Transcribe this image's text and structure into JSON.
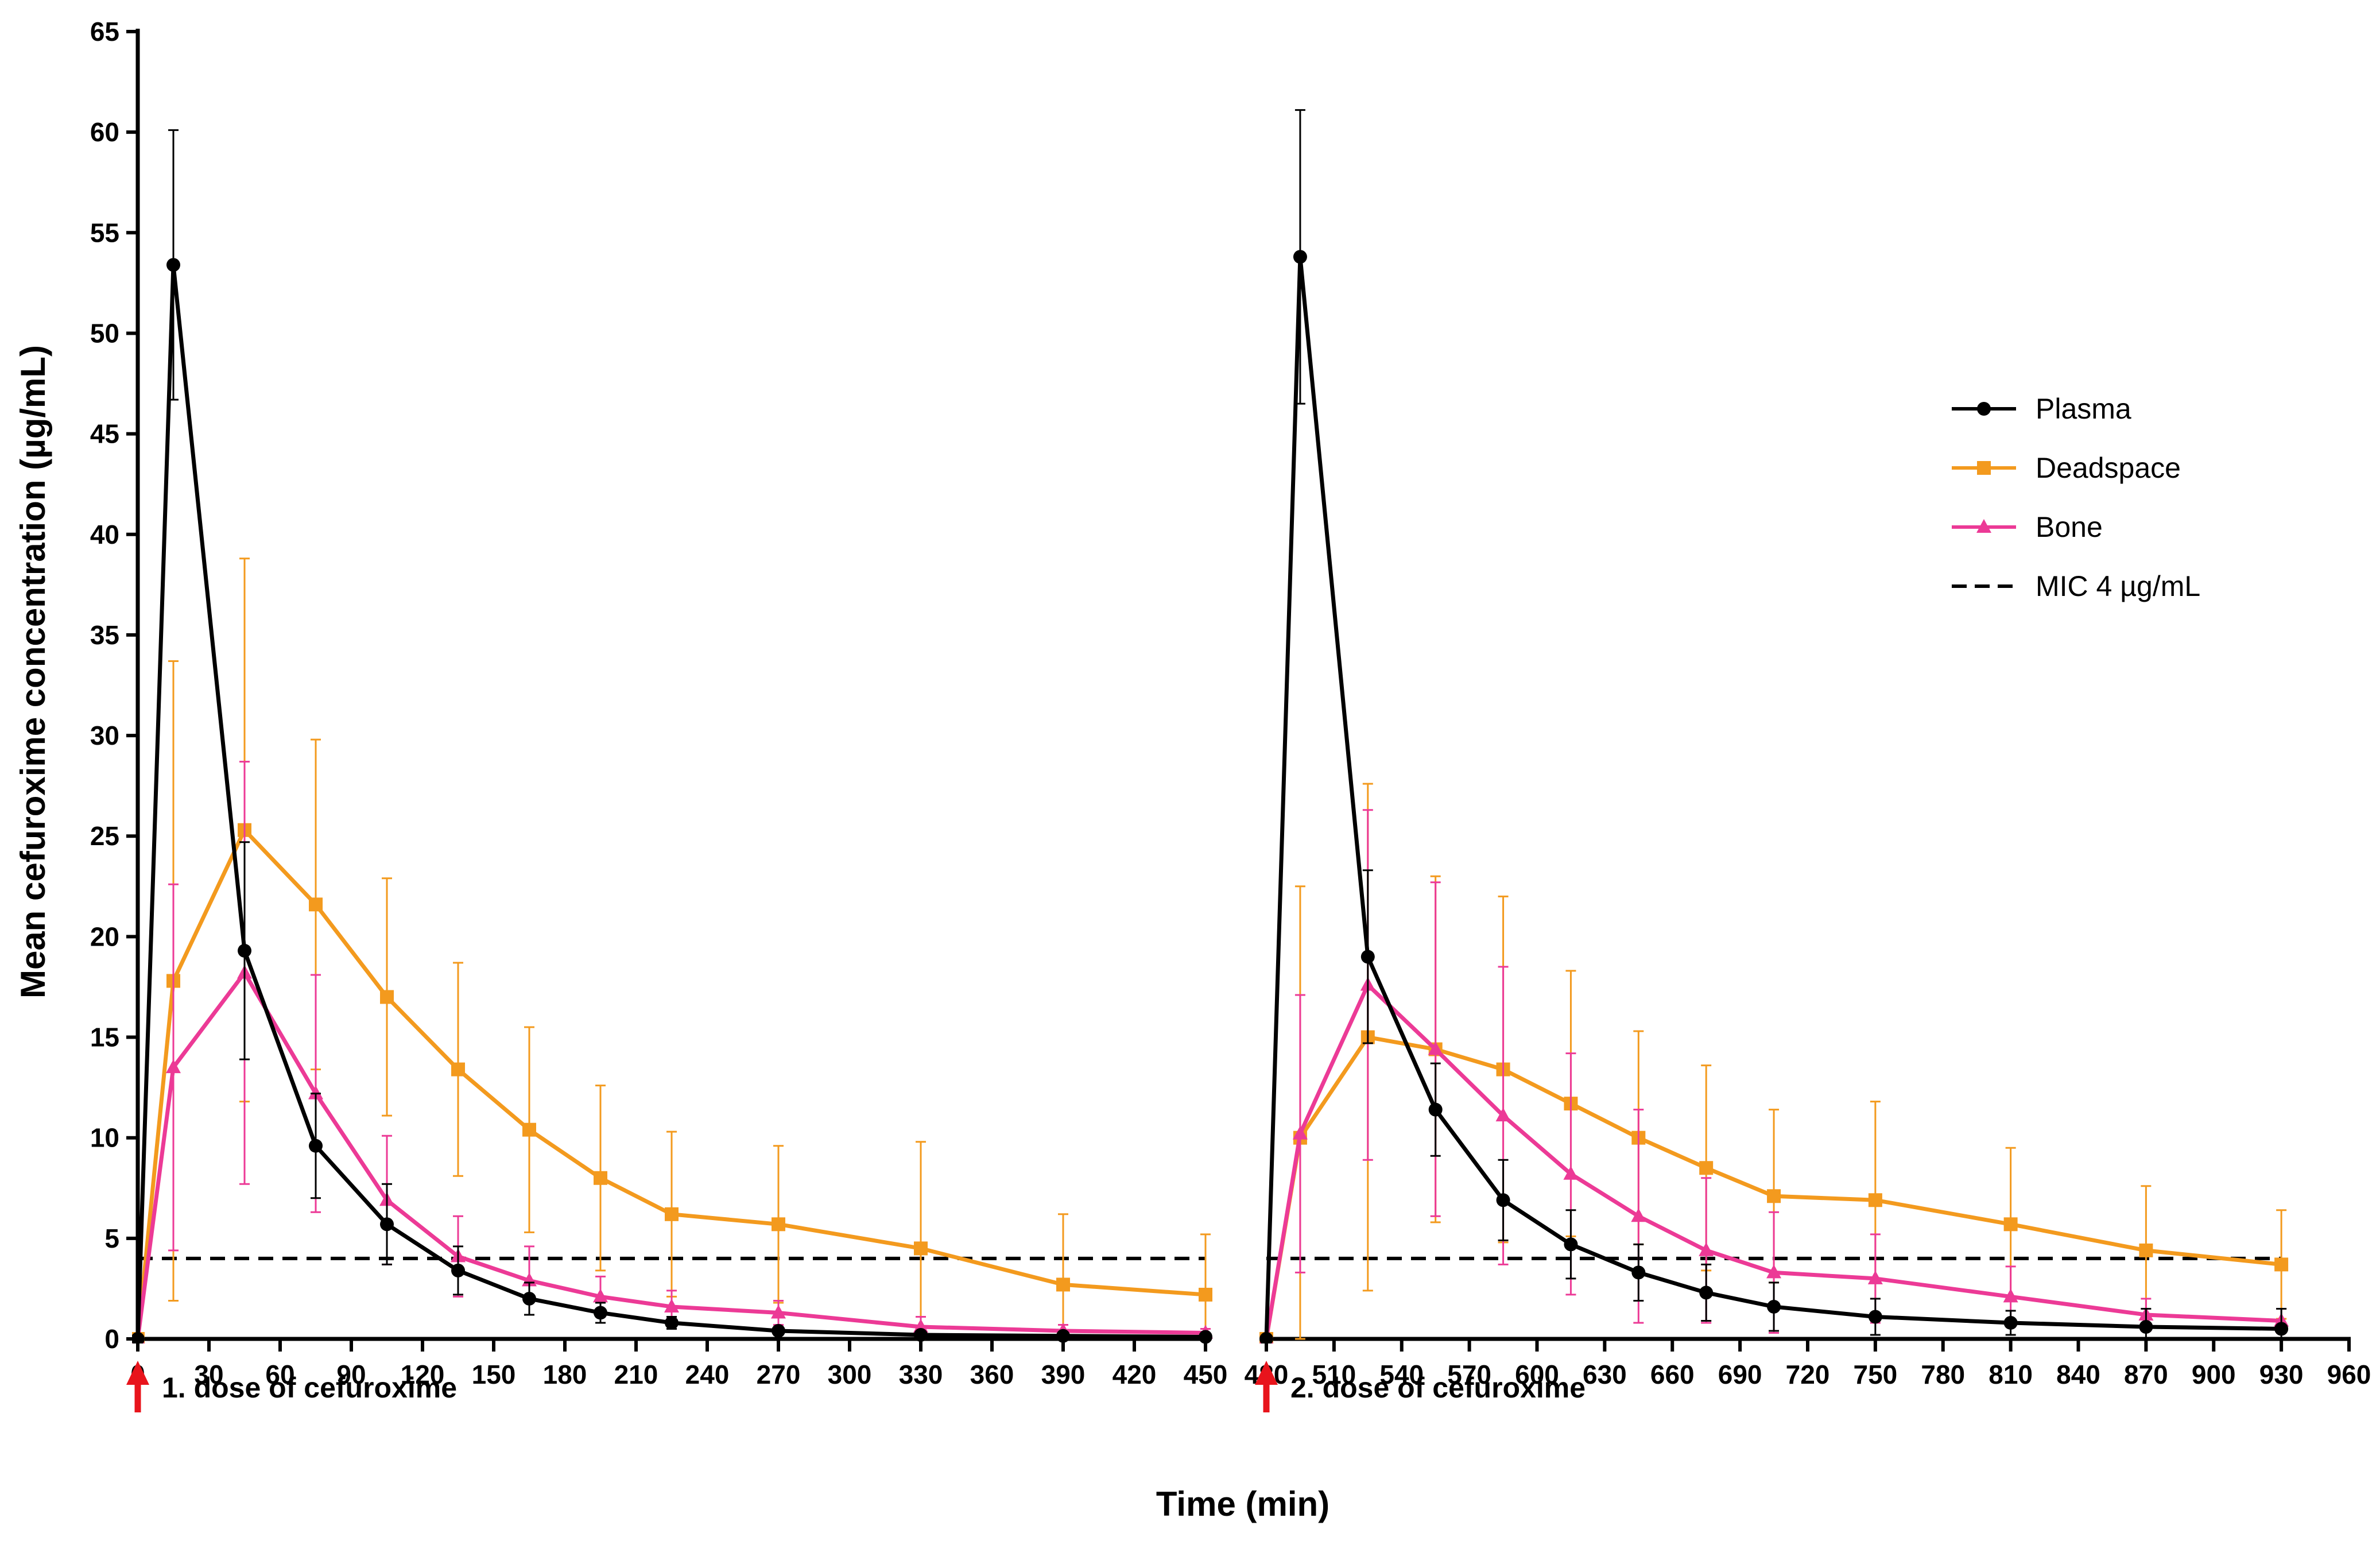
{
  "chart_data": {
    "type": "line",
    "ylabel": "Mean cefuroxime concentration (µg/mL)",
    "xlabel": "Time (min)",
    "ylim": [
      0,
      65
    ],
    "yticks": [
      0,
      5,
      10,
      15,
      20,
      25,
      30,
      35,
      40,
      45,
      50,
      55,
      60,
      65
    ],
    "legend_position": "right",
    "grid": false,
    "colors": {
      "Plasma": "#000000",
      "Deadspace": "#f39a1e",
      "Bone": "#ec3a96",
      "MIC": "#000000",
      "arrow": "#e8141c"
    },
    "legend": [
      {
        "label": "Plasma",
        "marker": "circle",
        "color": "#000000"
      },
      {
        "label": "Deadspace",
        "marker": "square",
        "color": "#f39a1e"
      },
      {
        "label": "Bone",
        "marker": "triangle",
        "color": "#ec3a96"
      },
      {
        "label": "MIC 4 µg/mL",
        "marker": "dashed",
        "color": "#000000"
      }
    ],
    "mic_value": 4,
    "panels": [
      {
        "xlim": [
          0,
          450
        ],
        "xticks": [
          0,
          30,
          60,
          90,
          120,
          150,
          180,
          210,
          240,
          270,
          300,
          330,
          360,
          390,
          420,
          450
        ],
        "mic_range": [
          0,
          450
        ],
        "dose_label": "1. dose of cefuroxime",
        "dose_time": 0,
        "series": [
          {
            "name": "Plasma",
            "x": [
              0,
              15,
              45,
              75,
              105,
              135,
              165,
              195,
              225,
              270,
              330,
              390,
              450
            ],
            "y": [
              0,
              53.4,
              19.3,
              9.6,
              5.7,
              3.4,
              2.0,
              1.3,
              0.8,
              0.4,
              0.2,
              0.15,
              0.1
            ],
            "err": [
              0,
              6.7,
              5.4,
              2.6,
              2.0,
              1.2,
              0.8,
              0.5,
              0.3,
              0.2,
              0.1,
              0.1,
              0.1
            ]
          },
          {
            "name": "Deadspace",
            "x": [
              0,
              15,
              45,
              75,
              105,
              135,
              165,
              195,
              225,
              270,
              330,
              390,
              450
            ],
            "y": [
              0,
              17.8,
              25.3,
              21.6,
              17.0,
              13.4,
              10.4,
              8.0,
              6.2,
              5.7,
              4.5,
              2.7,
              2.2
            ],
            "err": [
              0,
              15.9,
              13.5,
              8.2,
              5.9,
              5.3,
              5.1,
              4.6,
              4.1,
              3.9,
              5.3,
              3.5,
              3.0
            ]
          },
          {
            "name": "Bone",
            "x": [
              0,
              15,
              45,
              75,
              105,
              135,
              165,
              195,
              225,
              270,
              330,
              390,
              450
            ],
            "y": [
              0,
              13.5,
              18.2,
              12.2,
              6.9,
              4.1,
              2.9,
              2.1,
              1.6,
              1.3,
              0.6,
              0.4,
              0.3
            ],
            "err": [
              0,
              9.1,
              10.5,
              5.9,
              3.2,
              2.0,
              1.7,
              1.0,
              0.8,
              0.6,
              0.5,
              0.3,
              0.2
            ]
          }
        ]
      },
      {
        "xlim": [
          480,
          960
        ],
        "xticks": [
          480,
          510,
          540,
          570,
          600,
          630,
          660,
          690,
          720,
          750,
          780,
          810,
          840,
          870,
          900,
          930,
          960
        ],
        "mic_range": [
          480,
          930
        ],
        "dose_label": "2. dose of cefuroxime",
        "dose_time": 480,
        "series": [
          {
            "name": "Plasma",
            "x": [
              480,
              495,
              525,
              555,
              585,
              615,
              645,
              675,
              705,
              750,
              810,
              870,
              930
            ],
            "y": [
              0,
              53.8,
              19.0,
              11.4,
              6.9,
              4.7,
              3.3,
              2.3,
              1.6,
              1.1,
              0.8,
              0.6,
              0.5
            ],
            "err": [
              0,
              7.3,
              4.3,
              2.3,
              2.0,
              1.7,
              1.4,
              1.4,
              1.2,
              0.9,
              0.6,
              0.9,
              1.0
            ]
          },
          {
            "name": "Deadspace",
            "x": [
              480,
              495,
              525,
              555,
              585,
              615,
              645,
              675,
              705,
              750,
              810,
              870,
              930
            ],
            "y": [
              0,
              10.0,
              15.0,
              14.4,
              13.4,
              11.7,
              10.0,
              8.5,
              7.1,
              6.9,
              5.7,
              4.4,
              3.7
            ],
            "err": [
              0,
              12.5,
              12.6,
              8.6,
              8.6,
              6.6,
              5.3,
              5.1,
              4.3,
              4.9,
              3.8,
              3.2,
              2.7
            ]
          },
          {
            "name": "Bone",
            "x": [
              480,
              495,
              525,
              555,
              585,
              615,
              645,
              675,
              705,
              750,
              810,
              870,
              930
            ],
            "y": [
              0,
              10.2,
              17.6,
              14.4,
              11.1,
              8.2,
              6.1,
              4.4,
              3.3,
              3.0,
              2.1,
              1.2,
              0.9
            ],
            "err": [
              0,
              6.9,
              8.7,
              8.3,
              7.4,
              6.0,
              5.3,
              3.6,
              3.0,
              2.2,
              1.5,
              0.8,
              0.6
            ]
          }
        ]
      }
    ]
  }
}
